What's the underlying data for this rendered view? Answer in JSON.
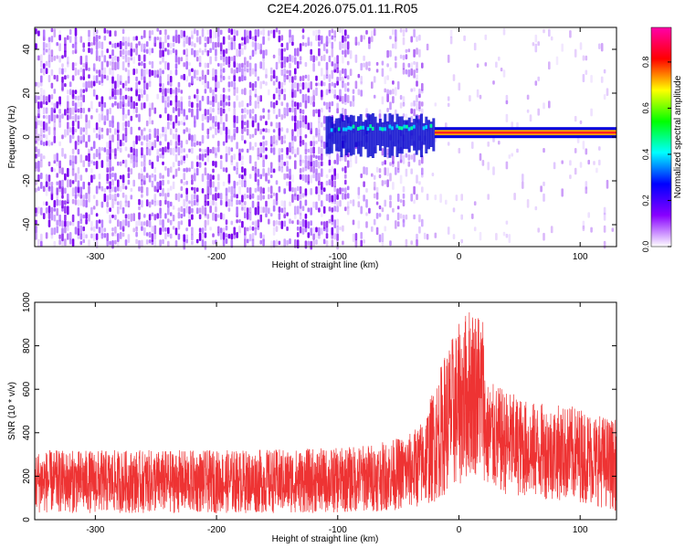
{
  "title": "C2E4.2026.075.01.11.R05",
  "chart_data": [
    {
      "type": "heatmap",
      "xlabel": "Height of straight line (km)",
      "ylabel": "Frequency (Hz)",
      "xlim": [
        -350,
        130
      ],
      "ylim": [
        -50,
        50
      ],
      "xticks": [
        -300,
        -200,
        -100,
        0,
        100
      ],
      "yticks": [
        -40,
        -20,
        0,
        20,
        40
      ],
      "colorbar": {
        "label": "Normalized spectral amplitude",
        "range": [
          0,
          0.95
        ],
        "ticks": [
          0,
          0.2,
          0.4,
          0.6,
          0.8
        ],
        "tick_labels": [
          "0.0",
          "0.2",
          "0.4",
          "0.6",
          "0.8"
        ],
        "colors": [
          "#ffffff",
          "#8800ff",
          "#0000ff",
          "#00ffff",
          "#00ff00",
          "#ffff00",
          "#ff0000",
          "#ff00aa"
        ]
      },
      "features": {
        "broadband_noise_x_range": [
          -350,
          -30
        ],
        "tone_start_x": -110,
        "tone_frequency_hz": 2,
        "strong_tone_x_range": [
          -20,
          130
        ],
        "tone_peak_amplitude": 0.85
      }
    },
    {
      "type": "line",
      "xlabel": "Height of straight line (km)",
      "ylabel": "SNR (10 * v/v)",
      "xlim": [
        -350,
        130
      ],
      "ylim": [
        0,
        1000
      ],
      "xticks": [
        -300,
        -200,
        -100,
        0,
        100
      ],
      "yticks": [
        0,
        200,
        400,
        600,
        800,
        1000
      ],
      "color": "#ee3333",
      "envelope": {
        "x": [
          -350,
          -300,
          -200,
          -100,
          -60,
          -40,
          -30,
          -20,
          -10,
          0,
          10,
          20,
          22,
          30,
          60,
          100,
          130
        ],
        "low": [
          30,
          30,
          30,
          30,
          40,
          50,
          60,
          80,
          120,
          150,
          200,
          200,
          150,
          120,
          100,
          80,
          40
        ],
        "high": [
          320,
          320,
          320,
          330,
          360,
          400,
          460,
          620,
          800,
          900,
          1000,
          960,
          640,
          620,
          540,
          520,
          460
        ]
      }
    }
  ]
}
